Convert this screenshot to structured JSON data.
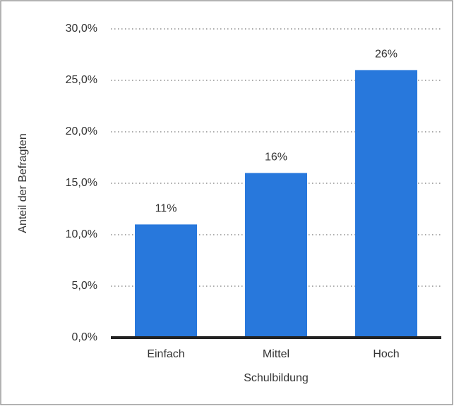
{
  "chart_data": {
    "type": "bar",
    "categories": [
      "Einfach",
      "Mittel",
      "Hoch"
    ],
    "values": [
      11,
      16,
      26
    ],
    "value_labels": [
      "11%",
      "16%",
      "26%"
    ],
    "color": "#2878dc",
    "xlabel": "Schulbildung",
    "ylabel": "Anteil der Befragten",
    "ylim": [
      0,
      30
    ],
    "yticks": [
      {
        "value": 0,
        "label": "0,0%"
      },
      {
        "value": 5,
        "label": "5,0%"
      },
      {
        "value": 10,
        "label": "10,0%"
      },
      {
        "value": 15,
        "label": "15,0%"
      },
      {
        "value": 20,
        "label": "20,0%"
      },
      {
        "value": 25,
        "label": "25,0%"
      },
      {
        "value": 30,
        "label": "30,0%"
      }
    ],
    "grid": true
  }
}
